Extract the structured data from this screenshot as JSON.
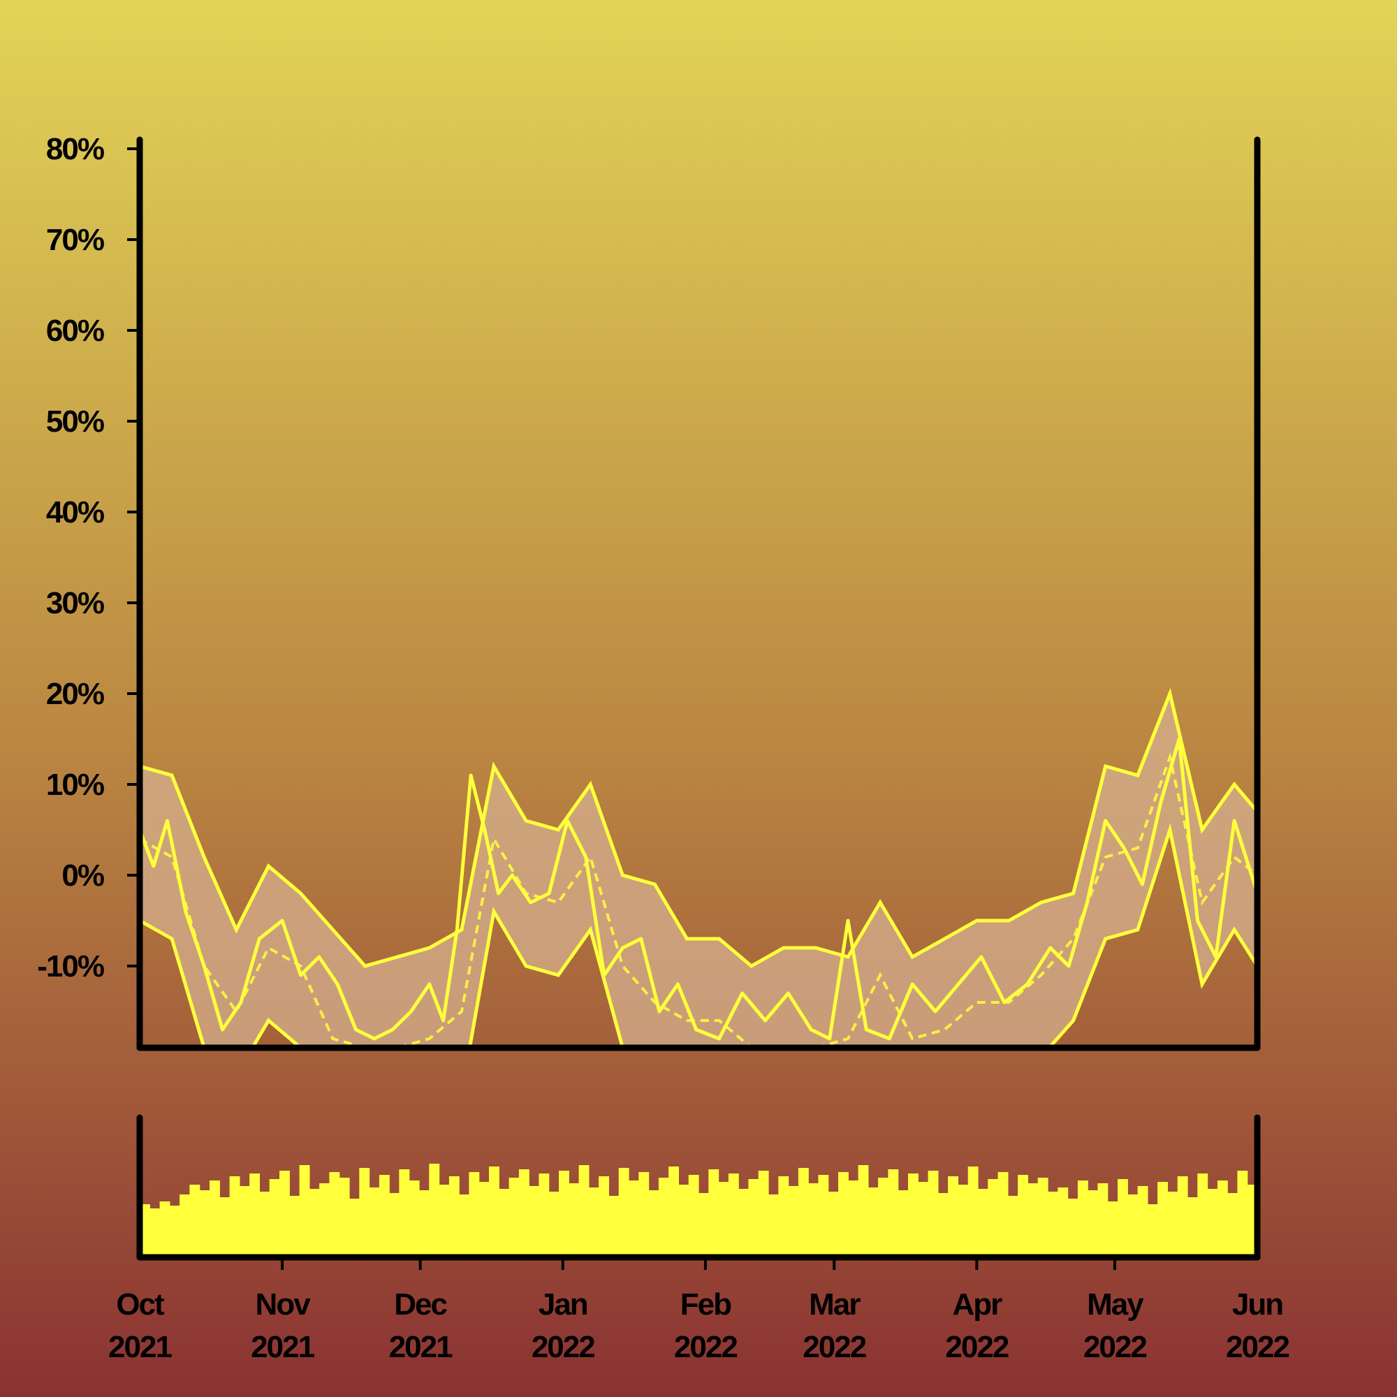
{
  "colors": {
    "background_top": "#e2d457",
    "background_bottom": "#8a3232",
    "accent": "#ffff3c",
    "band_fill": "#d6b08f",
    "axis": "#000000"
  },
  "chart_data": [
    {
      "type": "line",
      "xlabel": "",
      "ylabel": "",
      "xlim": [
        "2021-10-01",
        "2022-06-01"
      ],
      "ylim": [
        -19,
        81
      ],
      "y_ticks": [
        "80%",
        "70%",
        "60%",
        "50%",
        "40%",
        "30%",
        "20%",
        "10%",
        "0%",
        "-10%"
      ],
      "x_ticks": [
        {
          "month": "Oct",
          "year": "2021"
        },
        {
          "month": "Nov",
          "year": "2021"
        },
        {
          "month": "Dec",
          "year": "2021"
        },
        {
          "month": "Jan",
          "year": "2022"
        },
        {
          "month": "Feb",
          "year": "2022"
        },
        {
          "month": "Mar",
          "year": "2022"
        },
        {
          "month": "Apr",
          "year": "2022"
        },
        {
          "month": "May",
          "year": "2022"
        },
        {
          "month": "Jun",
          "year": "2022"
        }
      ],
      "grid": false,
      "legend": "none",
      "bands": {
        "dates": [
          "2021-10-01",
          "2021-10-08",
          "2021-10-15",
          "2021-10-22",
          "2021-10-29",
          "2021-11-05",
          "2021-11-12",
          "2021-11-19",
          "2021-11-26",
          "2021-12-03",
          "2021-12-10",
          "2021-12-17",
          "2021-12-24",
          "2021-12-31",
          "2022-01-07",
          "2022-01-14",
          "2022-01-21",
          "2022-01-28",
          "2022-02-04",
          "2022-02-11",
          "2022-02-18",
          "2022-02-25",
          "2022-03-04",
          "2022-03-11",
          "2022-03-18",
          "2022-03-25",
          "2022-04-01",
          "2022-04-08",
          "2022-04-15",
          "2022-04-22",
          "2022-04-29",
          "2022-05-06",
          "2022-05-13",
          "2022-05-20",
          "2022-05-27",
          "2022-06-01"
        ],
        "upper": [
          12,
          11,
          2,
          -6,
          1,
          -2,
          -6,
          -10,
          -9,
          -8,
          -6,
          12,
          6,
          5,
          10,
          0,
          -1,
          -7,
          -7,
          -10,
          -8,
          -8,
          -9,
          -3,
          -9,
          -7,
          -5,
          -5,
          -3,
          -2,
          12,
          11,
          20,
          5,
          10,
          7
        ],
        "mean": [
          4,
          2,
          -10,
          -15,
          -8,
          -10,
          -18,
          -19,
          -19,
          -18,
          -15,
          4,
          -2,
          -3,
          2,
          -10,
          -14,
          -16,
          -16,
          -19,
          -19,
          -19,
          -18,
          -11,
          -18,
          -17,
          -14,
          -14,
          -11,
          -7,
          2,
          3,
          13,
          -3,
          2,
          0
        ],
        "lower": [
          -5,
          -7,
          -19,
          -22,
          -16,
          -19,
          -25,
          -27,
          -27,
          -27,
          -24,
          -4,
          -10,
          -11,
          -6,
          -19,
          -22,
          -24,
          -24,
          -27,
          -27,
          -27,
          -26,
          -20,
          -27,
          -26,
          -23,
          -23,
          -20,
          -16,
          -7,
          -6,
          5,
          -12,
          -6,
          -10
        ]
      },
      "series": [
        {
          "dates": [
            "2021-10-01",
            "2021-10-04",
            "2021-10-07",
            "2021-10-11",
            "2021-10-15",
            "2021-10-19",
            "2021-10-23",
            "2021-10-27",
            "2021-11-01",
            "2021-11-05",
            "2021-11-09",
            "2021-11-13",
            "2021-11-17",
            "2021-11-21",
            "2021-11-25",
            "2021-11-29",
            "2021-12-03",
            "2021-12-06",
            "2021-12-09",
            "2021-12-12",
            "2021-12-15",
            "2021-12-18",
            "2021-12-21",
            "2021-12-25",
            "2021-12-29",
            "2022-01-02",
            "2022-01-06",
            "2022-01-10",
            "2022-01-14",
            "2022-01-18",
            "2022-01-22",
            "2022-01-26",
            "2022-01-30",
            "2022-02-04",
            "2022-02-09",
            "2022-02-14",
            "2022-02-19",
            "2022-02-24",
            "2022-02-28",
            "2022-03-04",
            "2022-03-08",
            "2022-03-13",
            "2022-03-18",
            "2022-03-23",
            "2022-03-28",
            "2022-04-02",
            "2022-04-07",
            "2022-04-12",
            "2022-04-17",
            "2022-04-21",
            "2022-04-25",
            "2022-04-29",
            "2022-05-03",
            "2022-05-07",
            "2022-05-11",
            "2022-05-15",
            "2022-05-19",
            "2022-05-23",
            "2022-05-27",
            "2022-06-01"
          ],
          "values": [
            5,
            1,
            6,
            -4,
            -10,
            -17,
            -14,
            -7,
            -5,
            -11,
            -9,
            -12,
            -17,
            -18,
            -17,
            -15,
            -12,
            -16,
            -6,
            11,
            5,
            -2,
            0,
            -3,
            -2,
            6,
            2,
            -11,
            -8,
            -7,
            -15,
            -12,
            -17,
            -18,
            -13,
            -16,
            -13,
            -17,
            -18,
            -5,
            -17,
            -18,
            -12,
            -15,
            -12,
            -9,
            -14,
            -12,
            -8,
            -10,
            -3,
            6,
            3,
            -1,
            8,
            15,
            -5,
            -9,
            6,
            -2
          ],
          "color": "#ffff3c"
        }
      ]
    },
    {
      "type": "bar",
      "note_values": "relative daily volume, 0-100 scale",
      "values": [
        38,
        35,
        40,
        37,
        45,
        52,
        48,
        55,
        43,
        58,
        51,
        60,
        47,
        56,
        62,
        44,
        66,
        49,
        53,
        61,
        57,
        42,
        64,
        50,
        59,
        46,
        63,
        55,
        48,
        67,
        52,
        58,
        45,
        61,
        54,
        65,
        49,
        57,
        63,
        51,
        60,
        47,
        62,
        53,
        66,
        50,
        58,
        44,
        64,
        55,
        61,
        48,
        57,
        65,
        52,
        59,
        46,
        63,
        54,
        60,
        49,
        56,
        62,
        45,
        58,
        51,
        64,
        53,
        59,
        47,
        61,
        55,
        66,
        50,
        57,
        63,
        48,
        60,
        54,
        62,
        46,
        58,
        52,
        65,
        49,
        56,
        61,
        44,
        59,
        53,
        57,
        47,
        50,
        42,
        55,
        48,
        53,
        40,
        56,
        45,
        51,
        38,
        54,
        47,
        58,
        43,
        60,
        49,
        55,
        46,
        62,
        52
      ]
    }
  ]
}
